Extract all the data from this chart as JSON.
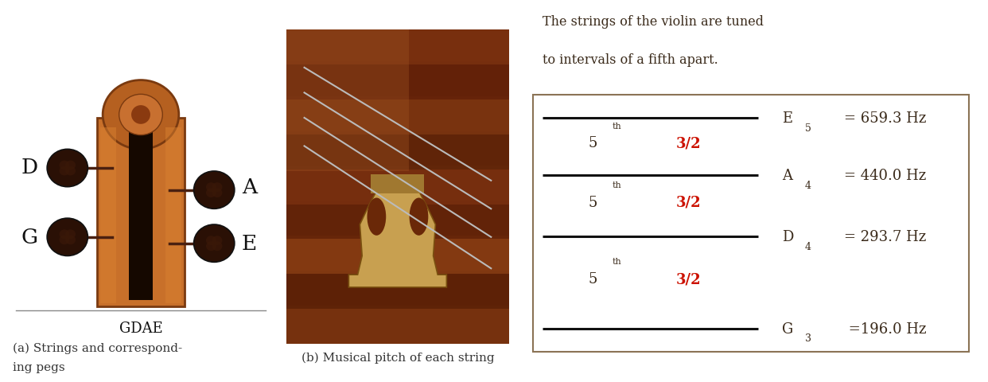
{
  "fig_width": 12.42,
  "fig_height": 4.81,
  "bg_color": "#ffffff",
  "panel_a_bg": "#f2ece0",
  "panel_a_label_color": "#111111",
  "panel_a_bottom_label": "GDAE",
  "panel_a_caption_line1": "(a) Strings and correspond-",
  "panel_a_caption_line2": "ing pegs",
  "panel_b_caption": "(b) Musical pitch of each string",
  "text_intro_line1": "The strings of the violin are tuned",
  "text_intro_line2": "to intervals of a fifth apart.",
  "text_color_dark": "#3a2a1a",
  "text_color_red": "#cc1100",
  "strings": [
    {
      "note": "E",
      "subscript": "5",
      "freq": "= 659.3 Hz"
    },
    {
      "note": "A",
      "subscript": "4",
      "freq": "= 440.0 Hz"
    },
    {
      "note": "D",
      "subscript": "4",
      "freq": "= 293.7 Hz"
    },
    {
      "note": "G",
      "subscript": "3",
      "freq": " =196.0 Hz"
    }
  ],
  "box_edge_color": "#8B7355",
  "line_color": "#111111",
  "caption_color": "#333333",
  "peg_color": "#2a1005",
  "peg_dark": "#1a0800",
  "neck_color": "#c8702a",
  "neck_edge": "#7a3a10",
  "wood_bg": "#7a3a10",
  "bridge_color": "#d4a055",
  "string_color": "#bbbbbb"
}
